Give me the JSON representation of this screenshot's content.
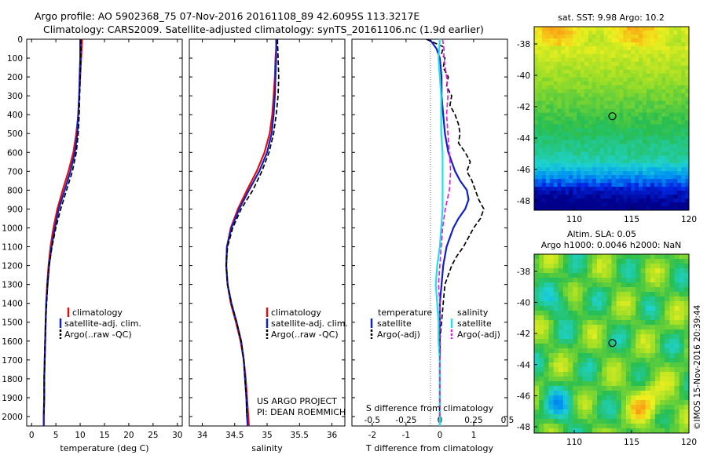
{
  "header": {
    "line1": "Argo profile: AO 5902368_75 07-Nov-2016 20161108_89 42.6095S 113.3217E",
    "line2": "Climatology: CARS2009. Satellite-adjusted climatology: synTS_20161106.nc (1.9d earlier)"
  },
  "colors": {
    "climatology": "#e01010",
    "satellite": "#1020c8",
    "argo": "#000000",
    "sat_salinity": "#20e0e8",
    "argo_salinity": "#e020e0"
  },
  "chart_data": [
    {
      "type": "line",
      "xlabel": "temperature (deg C)",
      "ylabel": "",
      "xlim": [
        -1,
        31
      ],
      "ylim": [
        0,
        2050
      ],
      "y_inverted": true,
      "xticks": [
        0,
        5,
        10,
        15,
        20,
        25,
        30
      ],
      "yticks": [
        0,
        100,
        200,
        300,
        400,
        500,
        600,
        700,
        800,
        900,
        1000,
        1100,
        1200,
        1300,
        1400,
        1500,
        1600,
        1700,
        1800,
        1900,
        2000
      ],
      "legend": [
        "climatology",
        "satellite-adj. clim.",
        "Argo(..raw -QC)"
      ],
      "series": [
        {
          "name": "climatology",
          "color": "climatology",
          "depth": [
            0,
            100,
            200,
            300,
            400,
            500,
            600,
            700,
            800,
            900,
            1000,
            1100,
            1200,
            1300,
            1400,
            1500,
            1600,
            1700,
            1800,
            1900,
            2000,
            2050
          ],
          "values": [
            10.4,
            10.2,
            10.0,
            9.8,
            9.6,
            9.2,
            8.6,
            7.6,
            6.4,
            5.3,
            4.5,
            3.9,
            3.5,
            3.2,
            3.0,
            2.9,
            2.8,
            2.7,
            2.6,
            2.6,
            2.5,
            2.5
          ]
        },
        {
          "name": "satellite-adj. clim.",
          "color": "satellite",
          "depth": [
            0,
            100,
            200,
            300,
            400,
            500,
            600,
            700,
            800,
            900,
            1000,
            1100,
            1200,
            1300,
            1400,
            1500,
            1600,
            1700,
            1800,
            1900,
            2000,
            2050
          ],
          "values": [
            10.0,
            10.0,
            9.9,
            9.8,
            9.6,
            9.4,
            8.9,
            8.0,
            6.8,
            5.6,
            4.8,
            4.1,
            3.6,
            3.3,
            3.0,
            2.9,
            2.8,
            2.7,
            2.6,
            2.6,
            2.5,
            2.5
          ]
        },
        {
          "name": "Argo(..raw -QC)",
          "color": "argo",
          "dashed": true,
          "depth": [
            0,
            100,
            200,
            300,
            400,
            500,
            600,
            700,
            800,
            900,
            1000,
            1100,
            1200,
            1300,
            1400,
            1500,
            1600,
            1700,
            1800,
            1900,
            2000
          ],
          "values": [
            10.2,
            10.1,
            10.0,
            9.9,
            9.8,
            9.6,
            9.2,
            8.4,
            7.2,
            6.0,
            5.0,
            4.2,
            3.6,
            3.3,
            3.1,
            2.9,
            2.8,
            2.7,
            2.6,
            2.6,
            2.5
          ]
        }
      ]
    },
    {
      "type": "line",
      "xlabel": "salinity",
      "ylabel": "",
      "xlim": [
        33.8,
        36.2
      ],
      "ylim": [
        0,
        2050
      ],
      "y_inverted": true,
      "xticks": [
        34,
        34.5,
        35,
        35.5,
        36
      ],
      "xtick_labels": [
        "34",
        "34.5",
        "35",
        "35.5",
        "36"
      ],
      "legend": [
        "climatology",
        "satellite-adj. clim.",
        "Argo(..raw -QC)"
      ],
      "annotations": [
        "US ARGO PROJECT",
        "PI: DEAN ROEMMICH"
      ],
      "series": [
        {
          "name": "climatology",
          "color": "climatology",
          "depth": [
            0,
            100,
            200,
            300,
            400,
            500,
            600,
            700,
            800,
            900,
            1000,
            1100,
            1200,
            1300,
            1400,
            1500,
            1600,
            1700,
            1800,
            1900,
            2000,
            2050
          ],
          "values": [
            35.15,
            35.13,
            35.12,
            35.1,
            35.08,
            35.04,
            34.96,
            34.84,
            34.69,
            34.55,
            34.44,
            34.38,
            34.37,
            34.39,
            34.44,
            34.52,
            34.59,
            34.64,
            34.67,
            34.69,
            34.71,
            34.72
          ]
        },
        {
          "name": "satellite-adj. clim.",
          "color": "satellite",
          "depth": [
            0,
            100,
            200,
            300,
            400,
            500,
            600,
            700,
            800,
            900,
            1000,
            1100,
            1200,
            1300,
            1400,
            1500,
            1600,
            1700,
            1800,
            1900,
            2000,
            2050
          ],
          "values": [
            35.14,
            35.14,
            35.13,
            35.12,
            35.1,
            35.07,
            35.0,
            34.88,
            34.72,
            34.57,
            34.45,
            34.38,
            34.37,
            34.39,
            34.45,
            34.53,
            34.6,
            34.64,
            34.66,
            34.68,
            34.69,
            34.7
          ]
        },
        {
          "name": "Argo(..raw -QC)",
          "color": "argo",
          "dashed": true,
          "depth": [
            0,
            100,
            200,
            300,
            400,
            500,
            600,
            700,
            800,
            900,
            1000,
            1100,
            1200,
            1300,
            1400,
            1500,
            1600,
            1700,
            1800,
            1900,
            2000
          ],
          "values": [
            35.16,
            35.17,
            35.18,
            35.17,
            35.14,
            35.1,
            35.03,
            34.92,
            34.78,
            34.6,
            34.47,
            34.39,
            34.37,
            34.39,
            34.45,
            34.53,
            34.6,
            34.64,
            34.66,
            34.68,
            34.69
          ]
        }
      ]
    },
    {
      "type": "line",
      "xlabel": "T difference from climatology",
      "xlabel2": "S difference from climatology",
      "xlim": [
        -2.6,
        2.0
      ],
      "ylim": [
        0,
        2050
      ],
      "y_inverted": true,
      "xticks": [
        -2,
        -1,
        0,
        1
      ],
      "xtick_labels": [
        "-2",
        "-1",
        "0",
        "1"
      ],
      "xticks2": [
        -0.5,
        -0.25,
        0,
        0.25,
        0.5
      ],
      "xtick2_labels": [
        "-0.5",
        "-0.25",
        "0",
        "0.25",
        "0.5"
      ],
      "legend_temperature_title": "temperature",
      "legend_salinity_title": "salinity",
      "legend": [
        "satellite",
        "Argo(-adj)",
        "satellite",
        "Argo(-adj)"
      ],
      "series": [
        {
          "name": "satellite",
          "group": "temperature",
          "color": "satellite",
          "depth": [
            0,
            50,
            100,
            200,
            300,
            400,
            500,
            600,
            700,
            750,
            800,
            850,
            900,
            950,
            1000,
            1050,
            1100,
            1200,
            1300,
            1400,
            1500,
            1600,
            1700,
            1800,
            1900,
            2000,
            2050
          ],
          "values": [
            -0.3,
            -0.1,
            0.0,
            0.05,
            0.05,
            0.1,
            0.15,
            0.25,
            0.45,
            0.6,
            0.8,
            0.85,
            0.75,
            0.55,
            0.4,
            0.3,
            0.2,
            0.1,
            0.05,
            0.0,
            0.0,
            0.0,
            0.0,
            0.0,
            0.0,
            0.0,
            0.0
          ]
        },
        {
          "name": "Argo(-adj)",
          "group": "temperature",
          "color": "argo",
          "dashed": true,
          "depth": [
            0,
            40,
            80,
            100,
            150,
            200,
            250,
            300,
            350,
            400,
            450,
            500,
            550,
            600,
            650,
            700,
            750,
            800,
            850,
            900,
            950,
            1000,
            1050,
            1100,
            1150,
            1200,
            1300,
            1400,
            1500,
            1600,
            1700,
            1800,
            1900,
            2000
          ],
          "values": [
            -0.4,
            0.1,
            0.05,
            0.15,
            0.1,
            0.25,
            0.2,
            0.35,
            0.3,
            0.45,
            0.55,
            0.6,
            0.55,
            0.75,
            0.9,
            0.8,
            0.95,
            1.05,
            1.15,
            1.3,
            1.2,
            1.0,
            0.85,
            0.7,
            0.5,
            0.35,
            0.15,
            0.1,
            0.05,
            0.0,
            0.0,
            0.0,
            0.0,
            0.0
          ]
        },
        {
          "name": "satellite",
          "group": "salinity",
          "color": "sat_salinity",
          "depth": [
            0,
            100,
            200,
            300,
            400,
            500,
            600,
            700,
            800,
            900,
            1000,
            1100,
            1200,
            1300,
            1400,
            1500,
            1600,
            1700,
            1800,
            1900,
            2000,
            2050
          ],
          "values": [
            0.0,
            -0.01,
            0.0,
            0.01,
            0.01,
            0.01,
            0.02,
            0.02,
            0.02,
            0.02,
            0.01,
            0.0,
            -0.02,
            -0.03,
            -0.02,
            -0.01,
            -0.01,
            0.0,
            0.0,
            0.0,
            0.0,
            0.0
          ]
        },
        {
          "name": "Argo(-adj)",
          "group": "salinity",
          "color": "argo_salinity",
          "dashed": true,
          "depth": [
            0,
            50,
            100,
            200,
            300,
            400,
            500,
            600,
            700,
            800,
            900,
            1000,
            1100,
            1200,
            1300,
            1400,
            1500,
            1600,
            1700,
            1800,
            1900,
            2000
          ],
          "values": [
            0.02,
            0.03,
            0.03,
            0.05,
            0.06,
            0.05,
            0.06,
            0.07,
            0.08,
            0.07,
            0.04,
            0.02,
            0.01,
            0.0,
            -0.01,
            0.0,
            0.0,
            0.0,
            0.0,
            0.0,
            0.0,
            0.0
          ]
        }
      ]
    },
    {
      "type": "heatmap",
      "title": "sat. SST: 9.98  Argo: 10.2",
      "xlim": [
        106.5,
        120
      ],
      "ylim": [
        -48.6,
        -36.9
      ],
      "xticks": [
        110,
        115,
        120
      ],
      "yticks": [
        -38,
        -40,
        -42,
        -44,
        -46,
        -48
      ],
      "marker": {
        "lon": 113.32,
        "lat": -42.61
      },
      "field": "sst"
    },
    {
      "type": "heatmap",
      "title": "Altim. SLA: 0.05",
      "subtitle": "Argo h1000: 0.0046  h2000: NaN",
      "xlim": [
        106.5,
        120
      ],
      "ylim": [
        -48.4,
        -36.9
      ],
      "xticks": [
        110,
        115,
        120
      ],
      "yticks": [
        -38,
        -40,
        -42,
        -44,
        -46,
        -48
      ],
      "marker": {
        "lon": 113.32,
        "lat": -42.61
      },
      "field": "sla"
    }
  ],
  "credit": "©IMOS 15-Nov-2016 20:39:44"
}
